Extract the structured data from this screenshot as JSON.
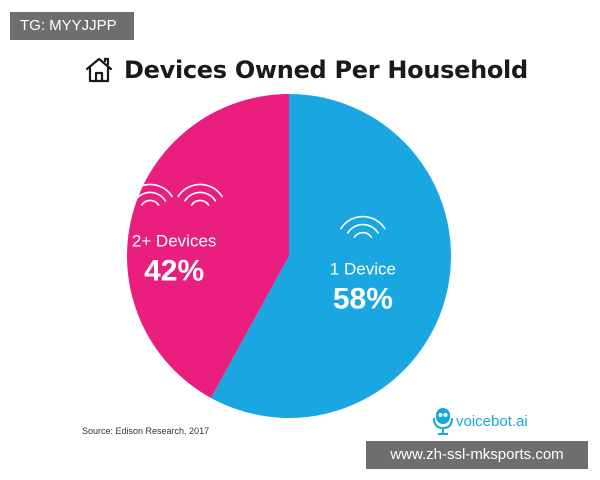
{
  "overlay": {
    "tag_text": "TG: MYYJJPP",
    "watermark_text": "www.zh-ssl-mksports.com"
  },
  "header": {
    "title": "Devices Owned Per Household",
    "icon": "house-icon"
  },
  "footer": {
    "source": "Source: Edison Research, 2017",
    "logo_text": "voicebot.ai",
    "logo_icon": "microphone-robot-icon"
  },
  "colors": {
    "one_device": "#1aa6e0",
    "two_plus": "#e91e7f",
    "title": "#1a1a1a",
    "overlay": "#6e6e6e"
  },
  "chart_data": {
    "type": "pie",
    "title": "Devices Owned Per Household",
    "slices": [
      {
        "label": "1 Device",
        "value": 58,
        "value_label": "58%",
        "color": "#1aa6e0",
        "icon": "wifi-signal-icon"
      },
      {
        "label": "2+ Devices",
        "value": 42,
        "value_label": "42%",
        "color": "#e91e7f",
        "icon": "wifi-signal-pair-icon"
      }
    ],
    "start": "top",
    "direction": "clockwise",
    "legend": "none"
  }
}
